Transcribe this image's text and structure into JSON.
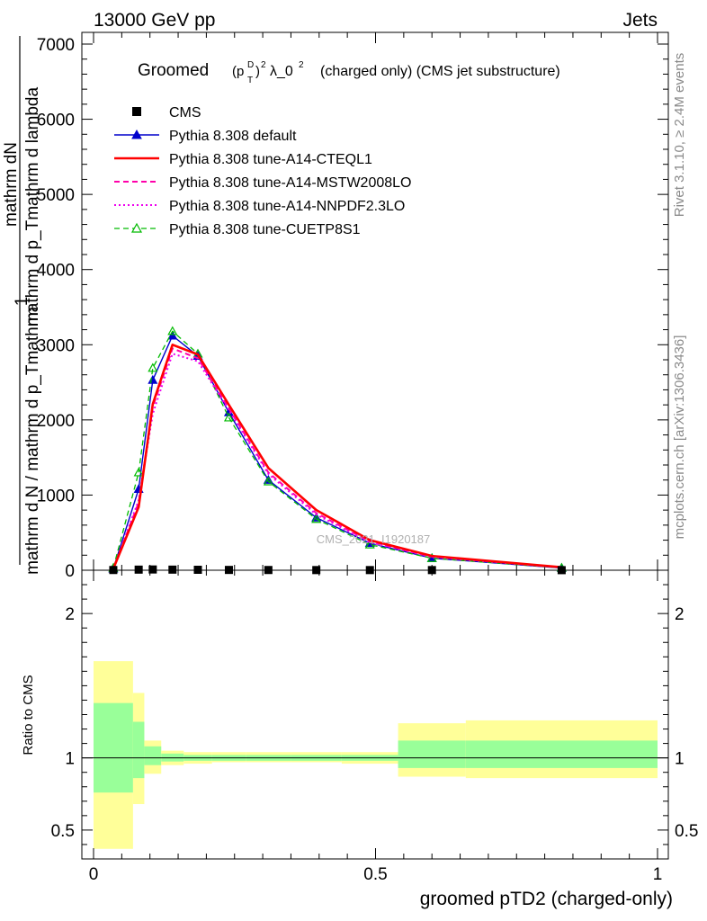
{
  "header": {
    "left": "13000 GeV pp",
    "right": "Jets"
  },
  "title": {
    "prefix": "Groomed",
    "pt_base": "(p",
    "pt_sup": "D",
    "pt_sub": "T",
    "pt_close": ")",
    "pt_pow": "2",
    "lambda": "λ_0",
    "lambda_pow": "2",
    "suffix": "(charged only) (CMS jet substructure)"
  },
  "side_labels": {
    "rivet": "Rivet 3.1.10, ≥ 2.4M events",
    "mcplots": "mcplots.cern.ch [arXiv:1306.3436]"
  },
  "watermark": "CMS_2021_I1920187",
  "axes": {
    "main_ylabel_num": "mathrm dN",
    "main_ylabel_num2": "mathrm d p_Tmathrm d lambda",
    "main_ylabel_one": "1",
    "main_ylabel_den": "mathrm d N / mathrm d p_Tmathrm",
    "ratio_ylabel": "Ratio to CMS",
    "xlabel": "groomed pTD2 (charged-only)"
  },
  "legend": [
    {
      "label": "CMS",
      "color": "#000000",
      "style": "square"
    },
    {
      "label": "Pythia 8.308 default",
      "color": "#0000cc",
      "style": "solid-triangle"
    },
    {
      "label": "Pythia 8.308 tune-A14-CTEQL1",
      "color": "#ff0000",
      "style": "solid-thick"
    },
    {
      "label": "Pythia 8.308 tune-A14-MSTW2008LO",
      "color": "#ff00aa",
      "style": "dashed"
    },
    {
      "label": "Pythia 8.308 tune-A14-NNPDF2.3LO",
      "color": "#ee00ee",
      "style": "dotted"
    },
    {
      "label": "Pythia 8.308 tune-CUETP8S1",
      "color": "#00bb00",
      "style": "dashed-open-triangle"
    }
  ],
  "chart_data": {
    "type": "line",
    "main": {
      "xlim": [
        0,
        1
      ],
      "ylim": [
        0,
        7000
      ],
      "yticks": [
        0,
        1000,
        2000,
        3000,
        4000,
        5000,
        6000,
        7000
      ],
      "ytick_labels": [
        "0",
        "1000",
        "2000",
        "3000",
        "4000",
        "5000",
        "6000",
        "7000"
      ]
    },
    "ratio": {
      "ylim": [
        0.3,
        2.3
      ],
      "yticks": [
        0.5,
        1,
        2
      ],
      "ytick_labels": [
        "0.5",
        "1",
        "2"
      ]
    },
    "xticks": [
      0,
      0.5,
      1
    ],
    "xtick_labels": [
      "0",
      "0.5",
      "1"
    ],
    "data_points": {
      "name": "CMS",
      "x": [
        0.035,
        0.08,
        0.105,
        0.14,
        0.185,
        0.24,
        0.31,
        0.395,
        0.49,
        0.6,
        0.83
      ],
      "y": [
        3,
        8,
        10,
        8,
        6,
        4,
        3,
        2,
        2,
        2,
        1
      ]
    },
    "series": [
      {
        "name": "Pythia 8.308 default",
        "color": "#0000cc",
        "x": [
          0.035,
          0.08,
          0.105,
          0.14,
          0.185,
          0.24,
          0.31,
          0.395,
          0.49,
          0.6,
          0.83
        ],
        "y": [
          20,
          1080,
          2530,
          3120,
          2850,
          2100,
          1200,
          700,
          360,
          160,
          30
        ]
      },
      {
        "name": "Pythia 8.308 tune-A14-CTEQL1",
        "color": "#ff0000",
        "x": [
          0.035,
          0.08,
          0.105,
          0.14,
          0.185,
          0.24,
          0.31,
          0.395,
          0.49,
          0.6,
          0.83
        ],
        "y": [
          20,
          840,
          2210,
          3000,
          2870,
          2200,
          1360,
          800,
          400,
          190,
          40
        ]
      },
      {
        "name": "Pythia 8.308 tune-A14-MSTW2008LO",
        "color": "#ff00aa",
        "x": [
          0.035,
          0.08,
          0.105,
          0.14,
          0.185,
          0.24,
          0.31,
          0.395,
          0.49,
          0.6,
          0.83
        ],
        "y": [
          20,
          900,
          2170,
          2950,
          2820,
          2150,
          1300,
          760,
          380,
          180,
          38
        ]
      },
      {
        "name": "Pythia 8.308 tune-A14-NNPDF2.3LO",
        "color": "#ee00ee",
        "x": [
          0.035,
          0.08,
          0.105,
          0.14,
          0.185,
          0.24,
          0.31,
          0.395,
          0.49,
          0.6,
          0.83
        ],
        "y": [
          20,
          930,
          2080,
          2880,
          2780,
          2130,
          1280,
          740,
          370,
          175,
          36
        ]
      },
      {
        "name": "Pythia 8.308 tune-CUETP8S1",
        "color": "#00bb00",
        "x": [
          0.035,
          0.08,
          0.105,
          0.14,
          0.185,
          0.24,
          0.31,
          0.395,
          0.49,
          0.6,
          0.83
        ],
        "y": [
          30,
          1300,
          2690,
          3180,
          2880,
          2030,
          1180,
          680,
          340,
          160,
          32
        ]
      }
    ],
    "ratio_bands": {
      "x_edges": [
        0,
        0.07,
        0.09,
        0.12,
        0.16,
        0.21,
        0.27,
        0.35,
        0.44,
        0.54,
        0.66,
        1.0
      ],
      "outer_low": [
        0.37,
        0.68,
        0.89,
        0.95,
        0.96,
        0.97,
        0.97,
        0.97,
        0.96,
        0.87,
        0.86
      ],
      "outer_high": [
        1.67,
        1.45,
        1.12,
        1.05,
        1.04,
        1.04,
        1.04,
        1.04,
        1.04,
        1.24,
        1.26
      ],
      "inner_low": [
        0.76,
        0.86,
        0.95,
        0.975,
        0.98,
        0.98,
        0.98,
        0.98,
        0.98,
        0.93,
        0.93
      ],
      "inner_high": [
        1.38,
        1.25,
        1.08,
        1.03,
        1.02,
        1.02,
        1.02,
        1.02,
        1.02,
        1.12,
        1.12
      ]
    }
  }
}
